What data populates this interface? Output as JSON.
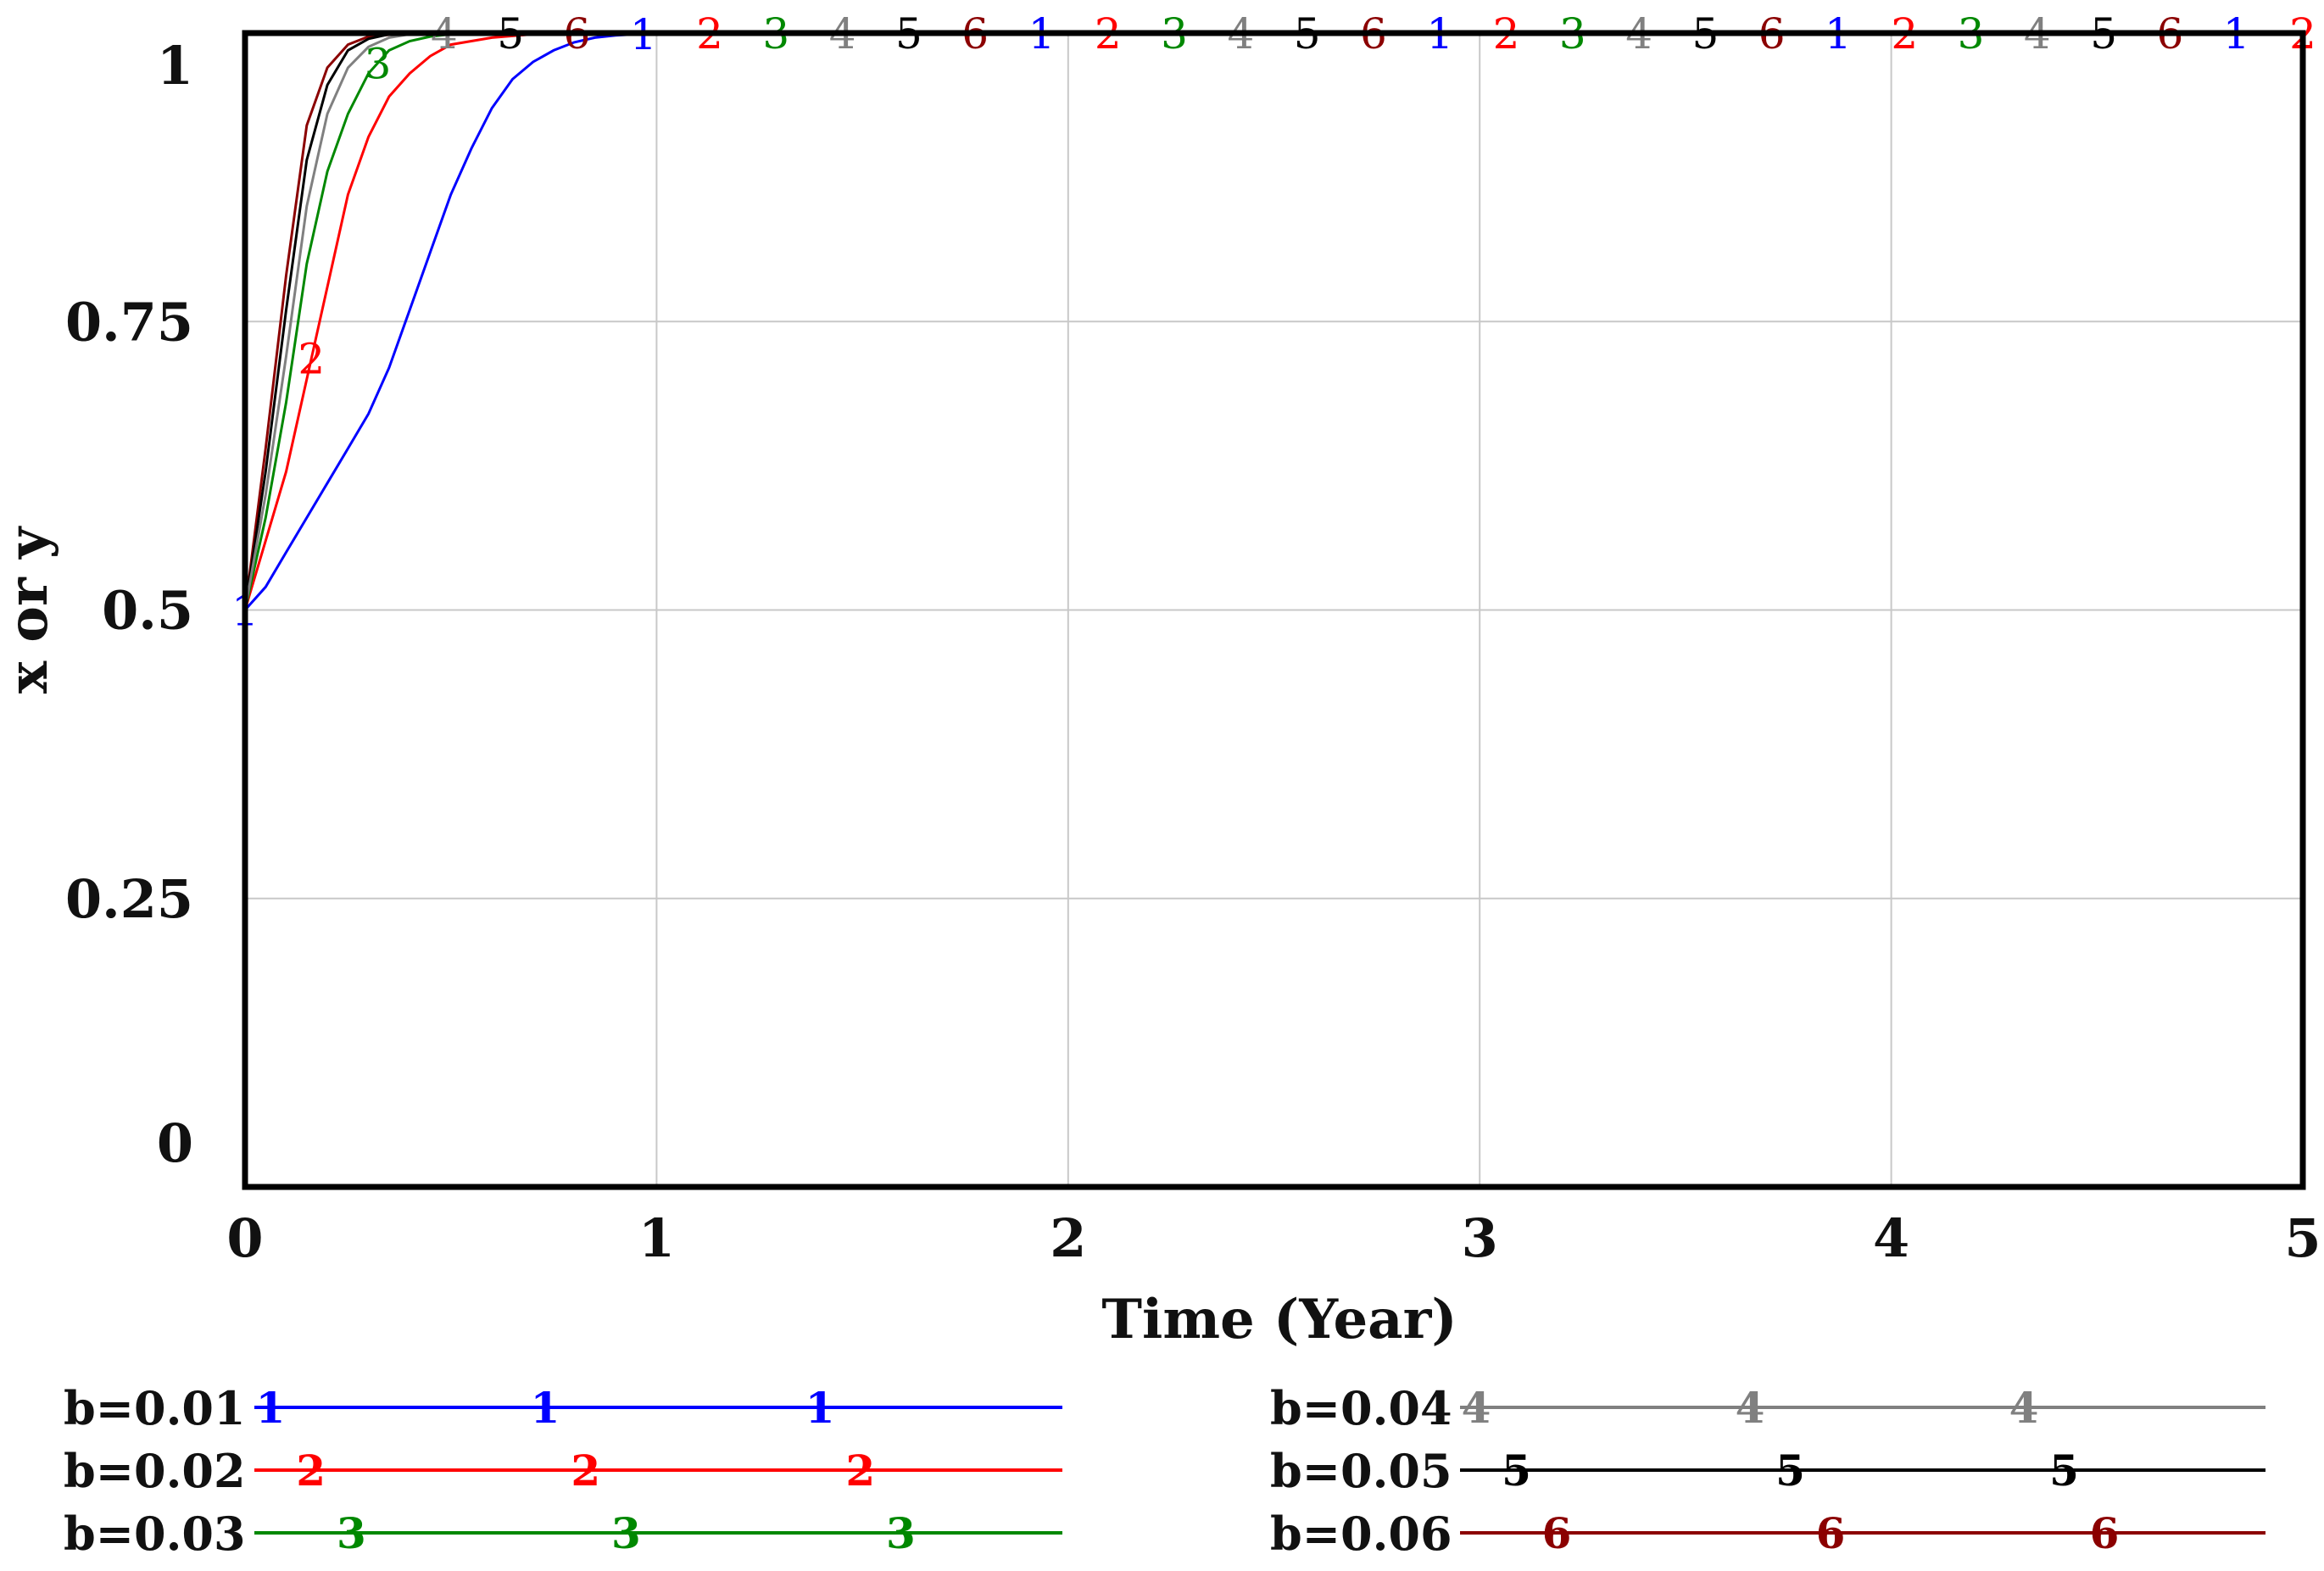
{
  "chart_data": {
    "type": "line",
    "title": "",
    "xlabel": "Time (Year)",
    "ylabel": "x or y",
    "xlim": [
      0,
      5
    ],
    "ylim": [
      0,
      1
    ],
    "x_ticks": [
      "0",
      "1",
      "2",
      "3",
      "4",
      "5"
    ],
    "y_ticks": [
      "0",
      "0.25",
      "0.5",
      "0.75",
      "1"
    ],
    "grid": true,
    "legend_position": "bottom",
    "series": [
      {
        "name": "b=0.01",
        "marker": "1",
        "color": "#0000ff",
        "x": [
          0,
          0.05,
          0.1,
          0.15,
          0.2,
          0.25,
          0.3,
          0.35,
          0.4,
          0.45,
          0.5,
          0.55,
          0.6,
          0.65,
          0.7,
          0.75,
          0.8,
          0.85,
          0.9,
          0.95,
          1.0,
          5.0
        ],
        "y": [
          0.5,
          0.52,
          0.55,
          0.58,
          0.61,
          0.64,
          0.67,
          0.71,
          0.76,
          0.81,
          0.86,
          0.9,
          0.935,
          0.96,
          0.975,
          0.985,
          0.992,
          0.996,
          0.998,
          0.999,
          1.0,
          1.0
        ]
      },
      {
        "name": "b=0.02",
        "marker": "2",
        "color": "#ff0000",
        "x": [
          0,
          0.05,
          0.1,
          0.15,
          0.2,
          0.25,
          0.3,
          0.35,
          0.4,
          0.45,
          0.5,
          0.6,
          0.7,
          0.8,
          5.0
        ],
        "y": [
          0.5,
          0.56,
          0.62,
          0.7,
          0.78,
          0.86,
          0.91,
          0.945,
          0.965,
          0.98,
          0.99,
          0.996,
          0.999,
          1.0,
          1.0
        ]
      },
      {
        "name": "b=0.03",
        "marker": "3",
        "color": "#008800",
        "x": [
          0,
          0.05,
          0.1,
          0.15,
          0.2,
          0.25,
          0.3,
          0.35,
          0.4,
          0.45,
          0.5,
          0.6,
          5.0
        ],
        "y": [
          0.5,
          0.58,
          0.68,
          0.8,
          0.88,
          0.93,
          0.965,
          0.985,
          0.993,
          0.997,
          0.999,
          1.0,
          1.0
        ]
      },
      {
        "name": "b=0.04",
        "marker": "4",
        "color": "#808080",
        "x": [
          0,
          0.05,
          0.1,
          0.15,
          0.2,
          0.25,
          0.3,
          0.35,
          0.4,
          0.5,
          5.0
        ],
        "y": [
          0.5,
          0.6,
          0.72,
          0.85,
          0.93,
          0.97,
          0.988,
          0.996,
          0.999,
          1.0,
          1.0
        ]
      },
      {
        "name": "b=0.05",
        "marker": "5",
        "color": "#000000",
        "x": [
          0,
          0.05,
          0.1,
          0.15,
          0.2,
          0.25,
          0.3,
          0.35,
          0.45,
          5.0
        ],
        "y": [
          0.5,
          0.62,
          0.76,
          0.89,
          0.955,
          0.985,
          0.995,
          0.999,
          1.0,
          1.0
        ]
      },
      {
        "name": "b=0.06",
        "marker": "6",
        "color": "#8b0000",
        "x": [
          0,
          0.05,
          0.1,
          0.15,
          0.2,
          0.25,
          0.3,
          0.4,
          5.0
        ],
        "y": [
          0.5,
          0.64,
          0.79,
          0.92,
          0.97,
          0.99,
          0.997,
          1.0,
          1.0
        ]
      }
    ]
  }
}
